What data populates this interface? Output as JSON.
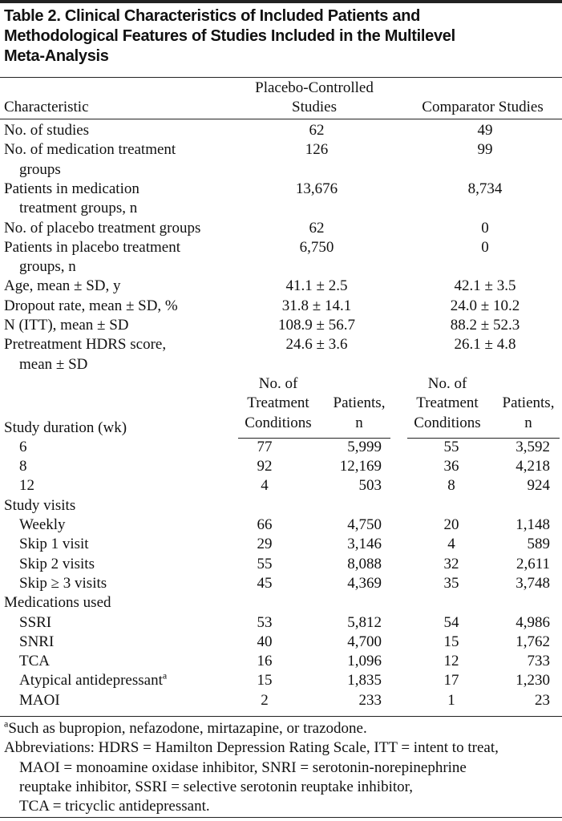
{
  "title": [
    "Table 2. Clinical Characteristics of Included Patients and",
    "Methodological Features of Studies Included in the Multilevel",
    "Meta-Analysis"
  ],
  "header": {
    "characteristic": "Characteristic",
    "columns": [
      [
        "Placebo-Controlled",
        "Studies"
      ],
      [
        "Comparator Studies"
      ]
    ]
  },
  "rows": [
    {
      "label": [
        "No. of studies"
      ],
      "values": [
        "62",
        "49"
      ]
    },
    {
      "label": [
        "No. of medication treatment",
        "groups"
      ],
      "values": [
        "126",
        "99"
      ]
    },
    {
      "label": [
        "Patients in medication",
        "treatment groups, n"
      ],
      "values": [
        "13,676",
        "8,734"
      ]
    },
    {
      "label": [
        "No. of placebo treatment groups"
      ],
      "values": [
        "62",
        "0"
      ]
    },
    {
      "label": [
        "Patients in placebo treatment",
        "groups, n"
      ],
      "values": [
        "6,750",
        "0"
      ]
    },
    {
      "label": [
        "Age, mean ± SD, y"
      ],
      "values": [
        "41.1 ± 2.5",
        "42.1 ± 3.5"
      ]
    },
    {
      "label": [
        "Dropout rate, mean ± SD, %"
      ],
      "values": [
        "31.8 ± 14.1",
        "24.0 ± 10.2"
      ]
    },
    {
      "label": [
        "N (ITT), mean ± SD"
      ],
      "values": [
        "108.9 ± 56.7",
        "88.2 ± 52.3"
      ]
    },
    {
      "label": [
        "Pretreatment HDRS score,",
        "mean ± SD"
      ],
      "values": [
        "24.6 ± 3.6",
        "26.1 ± 4.8"
      ]
    }
  ],
  "sub_header": {
    "label": "Study duration (wk)",
    "columns": [
      [
        "No. of",
        "Treatment",
        "Conditions"
      ],
      [
        "Patients,",
        "n"
      ],
      [
        "No. of",
        "Treatment",
        "Conditions"
      ],
      [
        "Patients,",
        "n"
      ]
    ]
  },
  "duration_rows": [
    {
      "label": "6",
      "values": [
        "77",
        "5,999",
        "55",
        "3,592"
      ]
    },
    {
      "label": "8",
      "values": [
        "92",
        "12,169",
        "36",
        "4,218"
      ]
    },
    {
      "label": "12",
      "values": [
        "4",
        "503",
        "8",
        "924"
      ]
    }
  ],
  "groups": [
    {
      "label": "Study visits",
      "rows": [
        {
          "label": "Weekly",
          "values": [
            "66",
            "4,750",
            "20",
            "1,148"
          ]
        },
        {
          "label": "Skip 1 visit",
          "values": [
            "29",
            "3,146",
            "4",
            "589"
          ]
        },
        {
          "label": "Skip 2 visits",
          "values": [
            "55",
            "8,088",
            "32",
            "2,611"
          ]
        },
        {
          "label": "Skip ≥ 3 visits",
          "values": [
            "45",
            "4,369",
            "35",
            "3,748"
          ]
        }
      ]
    },
    {
      "label": "Medications used",
      "rows": [
        {
          "label": "SSRI",
          "values": [
            "53",
            "5,812",
            "54",
            "4,986"
          ]
        },
        {
          "label": "SNRI",
          "values": [
            "40",
            "4,700",
            "15",
            "1,762"
          ]
        },
        {
          "label": "TCA",
          "values": [
            "16",
            "1,096",
            "12",
            "733"
          ]
        },
        {
          "label": "Atypical antidepressant",
          "note": "a",
          "values": [
            "15",
            "1,835",
            "17",
            "1,230"
          ]
        },
        {
          "label": "MAOI",
          "values": [
            "2",
            "233",
            "1",
            "23"
          ]
        }
      ]
    }
  ],
  "footnote": {
    "mark": "a",
    "text": "Such as bupropion, nefazodone, mirtazapine, or trazodone."
  },
  "abbreviations": [
    "Abbreviations: HDRS = Hamilton Depression Rating Scale, ITT = intent to treat,",
    "MAOI = monoamine oxidase inhibitor, SNRI = serotonin-norepinephrine",
    "reuptake inhibitor, SSRI = selective serotonin reuptake inhibitor,",
    "TCA = tricyclic antidepressant."
  ]
}
